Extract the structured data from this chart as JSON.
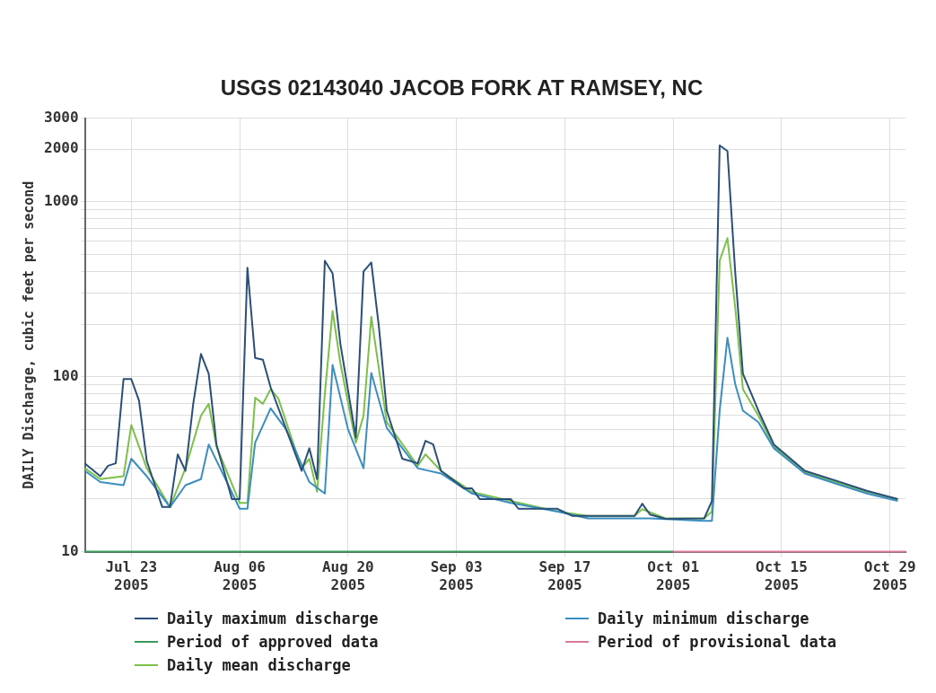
{
  "chart_data": {
    "type": "line",
    "title": "USGS 02143040 JACOB FORK AT RAMSEY, NC",
    "ylabel": "DAILY Discharge, cubic feet per second",
    "log": "y",
    "grid": true,
    "legend": "bottom",
    "marker": "none",
    "line_style": "solid",
    "xlim": [
      "2005-07-17",
      "2005-10-31"
    ],
    "xticks": [
      {
        "value": "2005-07-23",
        "label": "Jul 23 2005"
      },
      {
        "value": "2005-08-06",
        "label": "Aug 06 2005"
      },
      {
        "value": "2005-08-20",
        "label": "Aug 20 2005"
      },
      {
        "value": "2005-09-03",
        "label": "Sep 03 2005"
      },
      {
        "value": "2005-09-17",
        "label": "Sep 17 2005"
      },
      {
        "value": "2005-10-01",
        "label": "Oct 01 2005"
      },
      {
        "value": "2005-10-15",
        "label": "Oct 15 2005"
      },
      {
        "value": "2005-10-29",
        "label": "Oct 29 2005"
      }
    ],
    "ylim": [
      10,
      3000
    ],
    "yticks": [
      10,
      {
        "value": 20,
        "label": null
      },
      {
        "value": 30,
        "label": null
      },
      {
        "value": 40,
        "label": null
      },
      {
        "value": 50,
        "label": null
      },
      {
        "value": 60,
        "label": null
      },
      {
        "value": 70,
        "label": null
      },
      {
        "value": 80,
        "label": null
      },
      {
        "value": 90,
        "label": null
      },
      100,
      {
        "value": 200,
        "label": null
      },
      {
        "value": 300,
        "label": null
      },
      {
        "value": 400,
        "label": null
      },
      {
        "value": 500,
        "label": null
      },
      {
        "value": 600,
        "label": null
      },
      {
        "value": 700,
        "label": null
      },
      {
        "value": 800,
        "label": null
      },
      {
        "value": 900,
        "label": null
      },
      1000,
      2000,
      3000
    ],
    "series": [
      {
        "name": "Daily maximum discharge",
        "color": "#2a4f7a",
        "x": [
          "2005-07-17",
          "2005-07-19",
          "2005-07-20",
          "2005-07-21",
          "2005-07-22",
          "2005-07-23",
          "2005-07-24",
          "2005-07-25",
          "2005-07-27",
          "2005-07-28",
          "2005-07-29",
          "2005-07-30",
          "2005-07-31",
          "2005-08-01",
          "2005-08-02",
          "2005-08-03",
          "2005-08-05",
          "2005-08-06",
          "2005-08-07",
          "2005-08-08",
          "2005-08-09",
          "2005-08-10",
          "2005-08-14",
          "2005-08-15",
          "2005-08-16",
          "2005-08-17",
          "2005-08-18",
          "2005-08-19",
          "2005-08-21",
          "2005-08-22",
          "2005-08-23",
          "2005-08-24",
          "2005-08-25",
          "2005-08-27",
          "2005-08-29",
          "2005-08-30",
          "2005-08-31",
          "2005-09-01",
          "2005-09-04",
          "2005-09-05",
          "2005-09-06",
          "2005-09-10",
          "2005-09-11",
          "2005-09-16",
          "2005-09-18",
          "2005-09-26",
          "2005-09-27",
          "2005-09-28",
          "2005-09-30",
          "2005-10-05",
          "2005-10-06",
          "2005-10-07",
          "2005-10-08",
          "2005-10-09",
          "2005-10-10",
          "2005-10-12",
          "2005-10-14",
          "2005-10-18",
          "2005-10-22",
          "2005-10-26",
          "2005-10-30"
        ],
        "values": [
          32,
          27,
          31,
          32,
          97,
          97,
          73,
          33,
          18,
          18,
          36,
          29,
          70,
          135,
          104,
          41,
          20,
          20,
          420,
          128,
          125,
          87,
          29,
          39,
          26,
          460,
          390,
          155,
          45,
          400,
          450,
          190,
          64,
          34,
          32,
          43,
          41,
          29,
          23,
          23,
          20,
          20,
          17.6,
          17.6,
          16,
          16,
          18.8,
          16.3,
          15.4,
          15.5,
          19.5,
          2100,
          1950,
          400,
          104,
          64,
          41,
          29,
          25.5,
          22.3,
          20
        ]
      },
      {
        "name": "Daily minimum discharge",
        "color": "#3a8fc0",
        "x": [
          "2005-07-17",
          "2005-07-19",
          "2005-07-22",
          "2005-07-23",
          "2005-07-25",
          "2005-07-28",
          "2005-07-30",
          "2005-08-01",
          "2005-08-02",
          "2005-08-06",
          "2005-08-07",
          "2005-08-08",
          "2005-08-10",
          "2005-08-12",
          "2005-08-15",
          "2005-08-17",
          "2005-08-18",
          "2005-08-20",
          "2005-08-22",
          "2005-08-23",
          "2005-08-25",
          "2005-08-29",
          "2005-09-01",
          "2005-09-05",
          "2005-09-10",
          "2005-09-16",
          "2005-09-20",
          "2005-09-28",
          "2005-10-05",
          "2005-10-06",
          "2005-10-07",
          "2005-10-08",
          "2005-10-09",
          "2005-10-10",
          "2005-10-12",
          "2005-10-14",
          "2005-10-18",
          "2005-10-22",
          "2005-10-26",
          "2005-10-30"
        ],
        "values": [
          29,
          25,
          24,
          34,
          27,
          18,
          24,
          26,
          41,
          17.6,
          17.6,
          42,
          66,
          50,
          25,
          21.5,
          117,
          50,
          30,
          105,
          51,
          30,
          28,
          21.5,
          19,
          17,
          15.5,
          15.5,
          15,
          15,
          64,
          167,
          91,
          64,
          55,
          39,
          28,
          24.5,
          21.5,
          19.5
        ]
      },
      {
        "name": "Period of approved data",
        "color": "#3a9a5c",
        "x": [
          "2005-07-17",
          "2005-10-01"
        ],
        "values": [
          10,
          10
        ]
      },
      {
        "name": "Period of provisional data",
        "color": "#d9799a",
        "x": [
          "2005-10-01",
          "2005-10-31"
        ],
        "values": [
          10,
          10
        ]
      },
      {
        "name": "Daily mean discharge",
        "color": "#7cc04a",
        "x": [
          "2005-07-17",
          "2005-07-19",
          "2005-07-22",
          "2005-07-23",
          "2005-07-25",
          "2005-07-28",
          "2005-07-30",
          "2005-08-01",
          "2005-08-02",
          "2005-08-03",
          "2005-08-06",
          "2005-08-07",
          "2005-08-08",
          "2005-08-09",
          "2005-08-10",
          "2005-08-11",
          "2005-08-14",
          "2005-08-15",
          "2005-08-16",
          "2005-08-17",
          "2005-08-18",
          "2005-08-19",
          "2005-08-21",
          "2005-08-22",
          "2005-08-23",
          "2005-08-24",
          "2005-08-25",
          "2005-08-29",
          "2005-08-30",
          "2005-09-01",
          "2005-09-05",
          "2005-09-10",
          "2005-09-16",
          "2005-09-20",
          "2005-09-26",
          "2005-09-27",
          "2005-09-30",
          "2005-10-05",
          "2005-10-06",
          "2005-10-07",
          "2005-10-08",
          "2005-10-09",
          "2005-10-10",
          "2005-10-12",
          "2005-10-14",
          "2005-10-18",
          "2005-10-22",
          "2005-10-26",
          "2005-10-30"
        ],
        "values": [
          30,
          26,
          27,
          53,
          30,
          18,
          30,
          60,
          70,
          40,
          19,
          19,
          76,
          70,
          85,
          75,
          30,
          34,
          22,
          80,
          238,
          120,
          42,
          60,
          220,
          110,
          55,
          31,
          36,
          29,
          22,
          19.5,
          17,
          16,
          16,
          17.5,
          15.5,
          15.5,
          17,
          460,
          620,
          250,
          85,
          60,
          40,
          28.5,
          25,
          22,
          20
        ]
      }
    ]
  }
}
